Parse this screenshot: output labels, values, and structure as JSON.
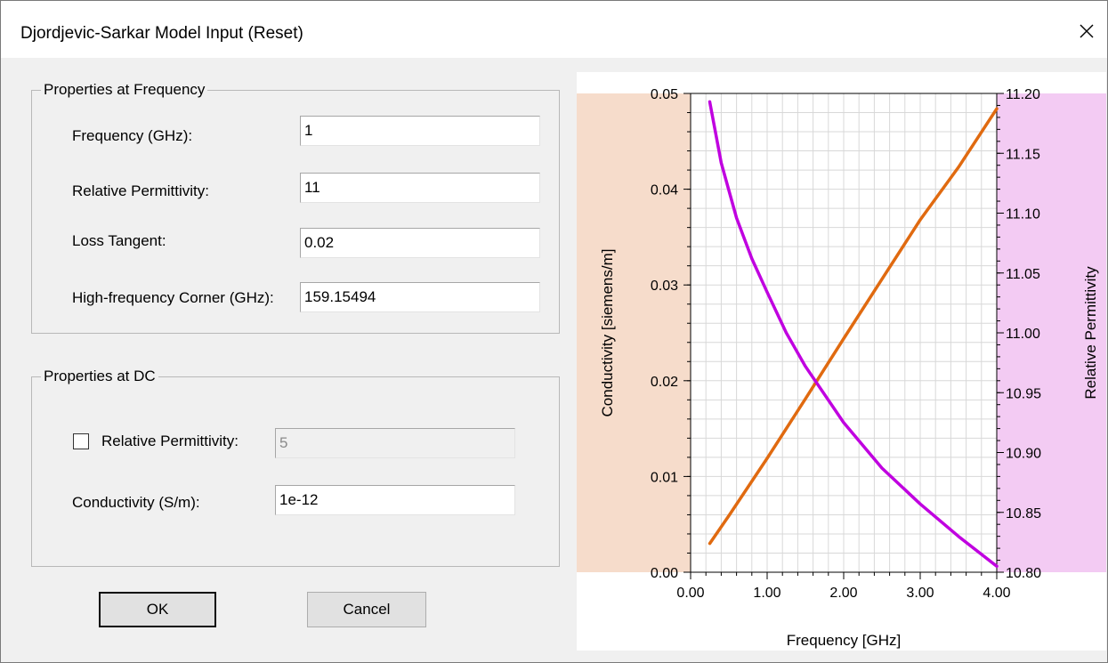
{
  "window": {
    "title": "Djordjevic-Sarkar Model Input (Reset)"
  },
  "freq_group": {
    "label": "Properties at Frequency",
    "frequency": {
      "label": "Frequency (GHz):",
      "value": "1"
    },
    "permittivity": {
      "label": "Relative Permittivity:",
      "value": "11"
    },
    "loss_tangent": {
      "label": "Loss Tangent:",
      "value": "0.02"
    },
    "hf_corner": {
      "label": "High-frequency Corner (GHz):",
      "value": "159.15494"
    }
  },
  "dc_group": {
    "label": "Properties at DC",
    "permittivity": {
      "label": "Relative Permittivity:",
      "value": "5",
      "checked": false,
      "enabled": false
    },
    "conductivity": {
      "label": "Conductivity (S/m):",
      "value": "1e-12"
    }
  },
  "buttons": {
    "ok": "OK",
    "cancel": "Cancel"
  },
  "chart_data": {
    "type": "line",
    "xlabel": "Frequency [GHz]",
    "ylabel_left": "Conductivity [siemens/m]",
    "ylabel_right": "Relative Permittivity",
    "xlim": [
      0,
      4
    ],
    "ylim_left": [
      0,
      0.05
    ],
    "ylim_right": [
      10.8,
      11.2
    ],
    "x_ticks": [
      "0.00",
      "1.00",
      "2.00",
      "3.00",
      "4.00"
    ],
    "y_left_ticks": [
      "0.00",
      "0.01",
      "0.02",
      "0.03",
      "0.04",
      "0.05"
    ],
    "y_right_ticks": [
      "10.80",
      "10.85",
      "10.90",
      "10.95",
      "11.00",
      "11.05",
      "11.10",
      "11.15",
      "11.20"
    ],
    "grid": true,
    "left_axis_bg": "#f6dccb",
    "right_axis_bg": "#f3cbf3",
    "series": [
      {
        "axis": "left",
        "color": "#e06a10",
        "x": [
          0.25,
          0.5,
          1.0,
          1.5,
          2.0,
          2.5,
          3.0,
          3.5,
          4.0
        ],
        "y": [
          0.003,
          0.0059,
          0.0119,
          0.0181,
          0.0244,
          0.0306,
          0.0368,
          0.0423,
          0.0484
        ]
      },
      {
        "axis": "right",
        "color": "#c000e0",
        "x": [
          0.25,
          0.4,
          0.6,
          0.8,
          1.0,
          1.25,
          1.5,
          2.0,
          2.5,
          3.0,
          3.5,
          4.0
        ],
        "y": [
          11.193,
          11.142,
          11.096,
          11.062,
          11.034,
          11.0,
          10.972,
          10.925,
          10.887,
          10.857,
          10.83,
          10.805
        ]
      }
    ]
  }
}
